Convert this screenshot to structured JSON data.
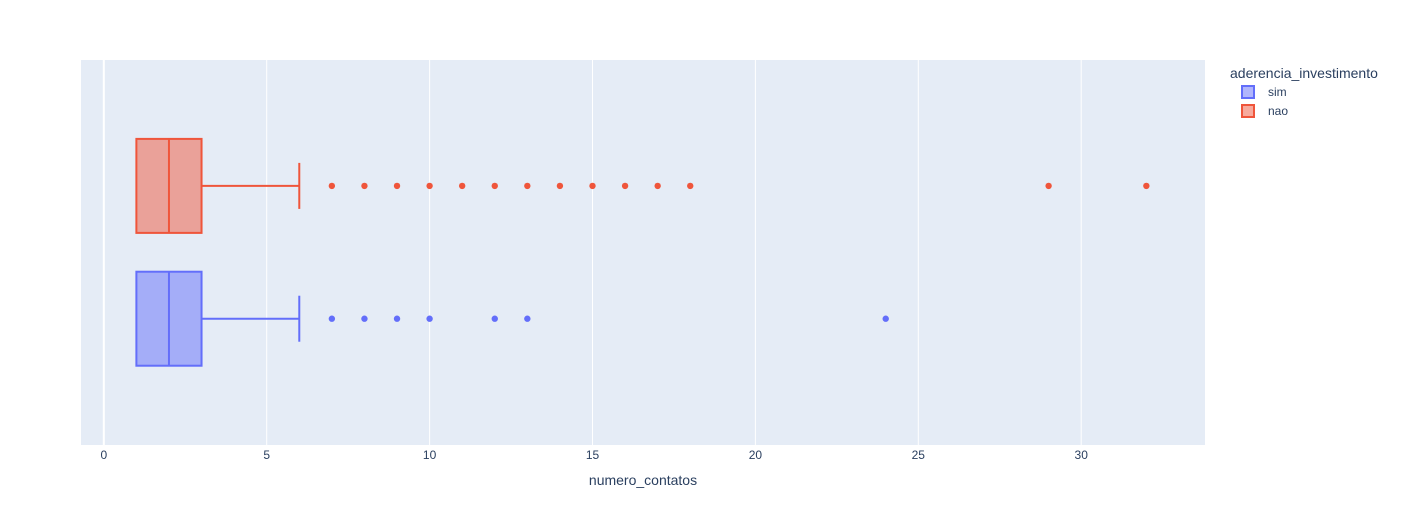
{
  "chart_data": {
    "type": "box",
    "orientation": "horizontal",
    "xlabel": "numero_contatos",
    "ylabel": "",
    "xlim": [
      -0.7,
      33.8
    ],
    "xticks": [
      0,
      5,
      10,
      15,
      20,
      25,
      30
    ],
    "grid": true,
    "plot_background": "#e5ecf6",
    "legend": {
      "title": "aderencia_investimento",
      "placement": "right"
    },
    "series": [
      {
        "name": "sim",
        "color": "#636efa",
        "fill": "rgba(99,110,250,0.5)",
        "min": 1,
        "q1": 1,
        "median": 2,
        "q3": 3,
        "upper_fence": 6,
        "outliers": [
          7,
          8,
          9,
          10,
          12,
          13,
          24
        ]
      },
      {
        "name": "nao",
        "color": "#ef553b",
        "fill": "rgba(239,85,59,0.5)",
        "min": 1,
        "q1": 1,
        "median": 2,
        "q3": 3,
        "upper_fence": 6,
        "outliers": [
          7,
          8,
          9,
          10,
          11,
          12,
          13,
          14,
          15,
          16,
          17,
          18,
          29,
          32
        ]
      }
    ]
  }
}
